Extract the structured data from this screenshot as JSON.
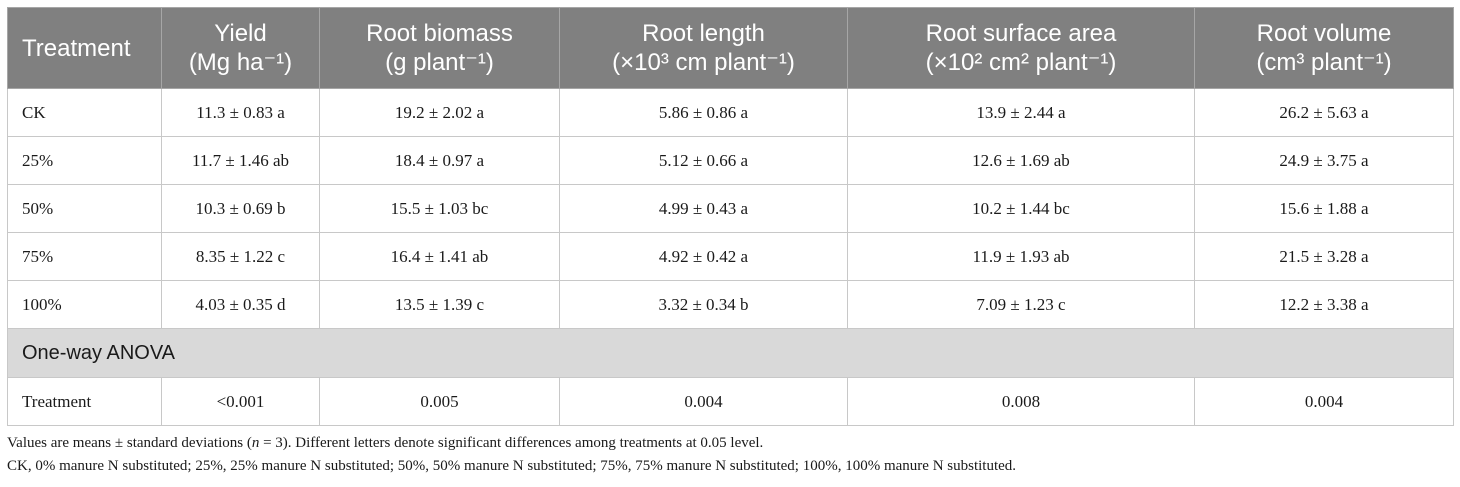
{
  "table": {
    "headers": [
      {
        "line1": "Treatment",
        "line2": ""
      },
      {
        "line1": "Yield",
        "line2": "(Mg ha⁻¹)"
      },
      {
        "line1": "Root biomass",
        "line2": "(g plant⁻¹)"
      },
      {
        "line1": "Root length",
        "line2": "(×10³ cm plant⁻¹)"
      },
      {
        "line1": "Root surface area",
        "line2": "(×10² cm² plant⁻¹)"
      },
      {
        "line1": "Root volume",
        "line2": "(cm³ plant⁻¹)"
      }
    ],
    "rows": [
      [
        "CK",
        "11.3 ± 0.83 a",
        "19.2 ± 2.02 a",
        "5.86 ± 0.86 a",
        "13.9 ± 2.44 a",
        "26.2 ± 5.63 a"
      ],
      [
        "25%",
        "11.7 ± 1.46 ab",
        "18.4 ± 0.97 a",
        "5.12 ± 0.66 a",
        "12.6 ± 1.69 ab",
        "24.9 ± 3.75 a"
      ],
      [
        "50%",
        "10.3 ± 0.69 b",
        "15.5 ± 1.03 bc",
        "4.99 ± 0.43 a",
        "10.2 ± 1.44 bc",
        "15.6 ± 1.88 a"
      ],
      [
        "75%",
        "8.35 ± 1.22 c",
        "16.4 ± 1.41 ab",
        "4.92 ± 0.42 a",
        "11.9 ± 1.93 ab",
        "21.5 ± 3.28 a"
      ],
      [
        "100%",
        "4.03 ± 0.35 d",
        "13.5 ± 1.39 c",
        "3.32 ± 0.34 b",
        "7.09 ± 1.23 c",
        "12.2 ± 3.38 a"
      ]
    ],
    "anova_label": "One-way ANOVA",
    "anova_row": [
      "Treatment",
      "<0.001",
      "0.005",
      "0.004",
      "0.008",
      "0.004"
    ]
  },
  "footnotes": {
    "line1_a": "Values are means ± standard deviations (",
    "line1_n": "n",
    "line1_b": " = 3). Different letters denote significant differences among treatments at 0.05 level.",
    "line2": "CK, 0% manure N substituted; 25%, 25% manure N substituted; 50%, 50% manure N substituted; 75%, 75% manure N substituted; 100%, 100% manure N substituted."
  }
}
